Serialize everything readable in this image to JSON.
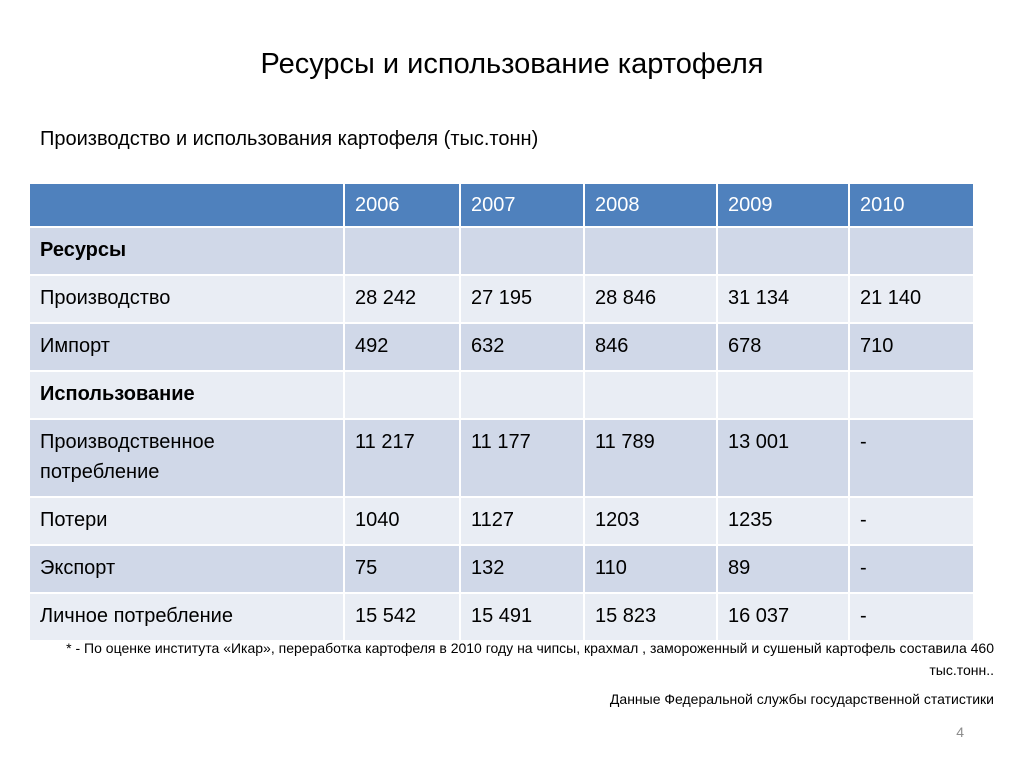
{
  "title": "Ресурсы и использование картофеля",
  "subtitle": "Производство и использования картофеля (тыс.тонн)",
  "table": {
    "header": [
      "",
      "2006",
      "2007",
      "2008",
      "2009",
      "2010"
    ],
    "rows": [
      {
        "label": "Ресурсы",
        "section": true,
        "cells": [
          "",
          "",
          "",
          "",
          ""
        ]
      },
      {
        "label": "Производство",
        "section": false,
        "cells": [
          "28 242",
          "27 195",
          "28 846",
          "31 134",
          "21 140"
        ]
      },
      {
        "label": "Импорт",
        "section": false,
        "cells": [
          "492",
          "632",
          "846",
          "678",
          "710"
        ]
      },
      {
        "label": "Использование",
        "section": true,
        "cells": [
          "",
          "",
          "",
          "",
          ""
        ]
      },
      {
        "label": "Производственное потребление",
        "section": false,
        "cells": [
          "11 217",
          "11 177",
          "11 789",
          "13 001",
          "-"
        ]
      },
      {
        "label": "Потери",
        "section": false,
        "cells": [
          "1040",
          "1127",
          "1203",
          "1235",
          "-"
        ]
      },
      {
        "label": "Экспорт",
        "section": false,
        "cells": [
          "75",
          "132",
          "110",
          "89",
          "-"
        ]
      },
      {
        "label": "Личное потребление",
        "section": false,
        "cells": [
          "15 542",
          "15 491",
          "15 823",
          "16 037",
          "-"
        ]
      }
    ]
  },
  "footnote": "* - По оценке института «Икар», переработка картофеля в 2010 году на чипсы, крахмал , замороженный и сушеный картофель составила 460 тыс.тонн..",
  "source": "Данные Федеральной службы государственной статистики",
  "page_number": "4",
  "colors": {
    "header_bg": "#4f81bd",
    "row_odd_bg": "#d0d8e8",
    "row_even_bg": "#e9edf4",
    "page_number": "#8c8c8c"
  }
}
